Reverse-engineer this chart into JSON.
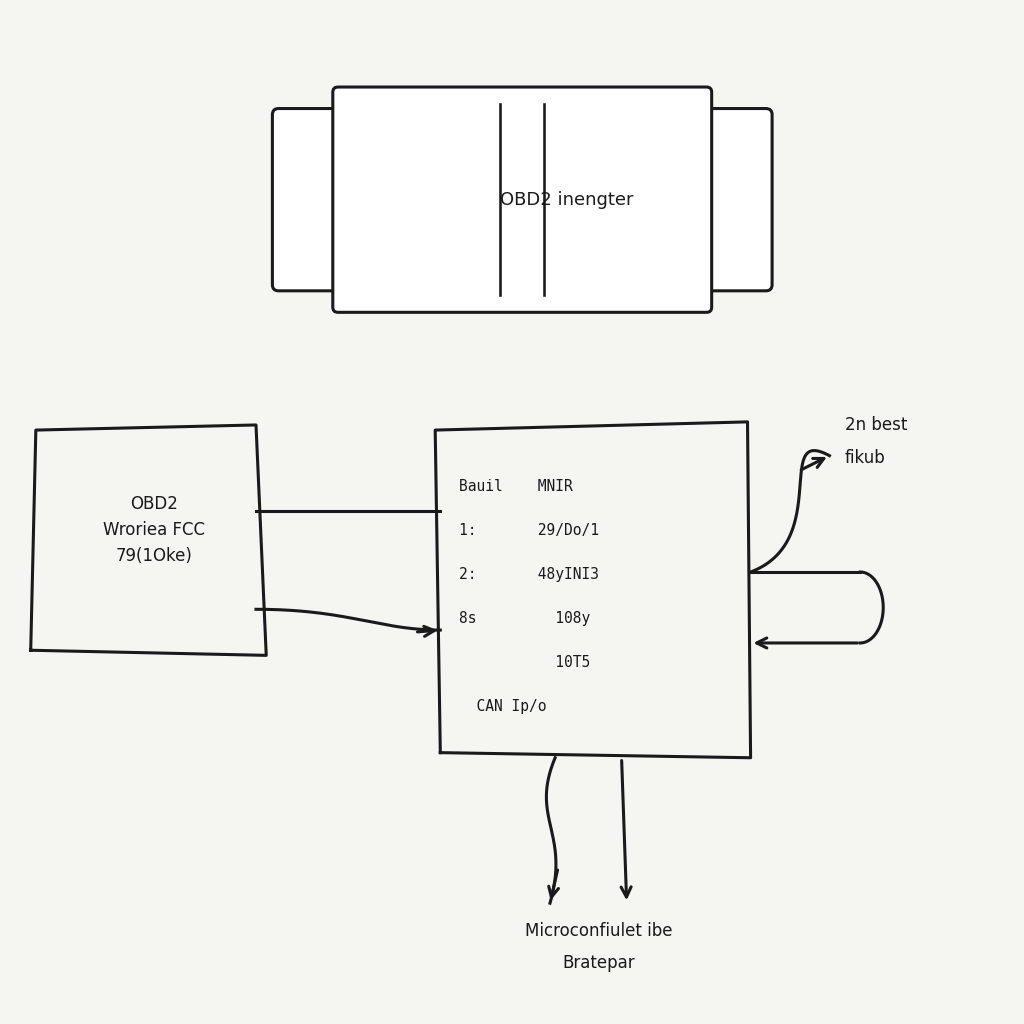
{
  "bg_color": "#f5f5f2",
  "line_color": "#1a1a1a",
  "obd2_connector_label": "OBD2 inengter",
  "left_box_label_line1": "OBD2",
  "left_box_label_line2": "Wroriea FCC",
  "left_box_label_line3": "79(1Oke)",
  "ecu_line1": "Bauil    MNIR",
  "ecu_line2": "1:       29/Do/1",
  "ecu_line3": "2:       48yINI3",
  "ecu_line4": "8s         108y",
  "ecu_line5": "           10T5",
  "ecu_line6": "  CAN Ip/o",
  "label_2nbest_line1": "2n best",
  "label_2nbest_line2": "fikub",
  "label_micro_line1": "Microconfiulet ibe",
  "label_micro_line2": "Bratepar",
  "lw": 2.2
}
